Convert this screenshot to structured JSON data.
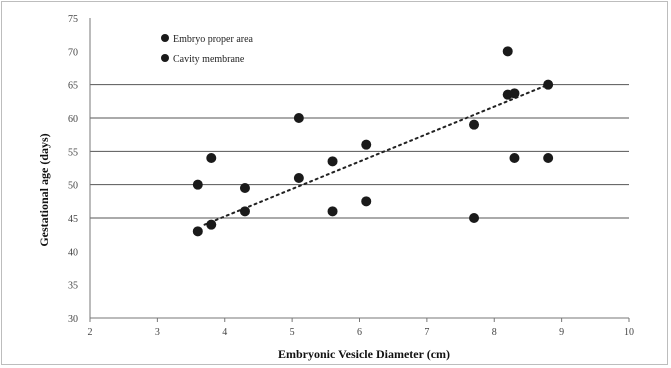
{
  "chart_data": {
    "type": "scatter",
    "title": "",
    "xlabel": "Embryonic Vesicle Diameter (cm)",
    "ylabel": "Gestational age (days)",
    "xlim": [
      2,
      10
    ],
    "ylim": [
      30,
      75
    ],
    "x_ticks": [
      "2",
      "3",
      "4",
      "5",
      "6",
      "7",
      "8",
      "9",
      "10"
    ],
    "y_ticks": [
      "30",
      "35",
      "40",
      "45",
      "50",
      "55",
      "60",
      "65",
      "70",
      "75"
    ],
    "grid": "horizontal lines at 45, 50, 55, 60 and 65",
    "legend_position": "top-left",
    "trendline": {
      "style": "dotted",
      "x": [
        3.7,
        8.8
      ],
      "y": [
        44,
        65
      ]
    },
    "series": [
      {
        "name": "Embryo proper area",
        "x": [
          3.6,
          3.8,
          4.3,
          5.1,
          5.6,
          6.1,
          7.7,
          8.2,
          8.3,
          8.8
        ],
        "y": [
          43,
          44,
          46,
          51,
          53.5,
          56,
          59,
          63.5,
          63.7,
          65
        ]
      },
      {
        "name": "Cavity membrane",
        "x": [
          3.6,
          3.8,
          4.3,
          5.1,
          5.6,
          6.1,
          7.7,
          8.2,
          8.3,
          8.8
        ],
        "y": [
          50,
          54,
          49.5,
          60,
          46,
          47.5,
          45,
          70,
          54,
          54
        ]
      }
    ],
    "colors": {
      "points": "#1a1a1a",
      "grid": "#555555",
      "trendline": "#222222"
    }
  }
}
